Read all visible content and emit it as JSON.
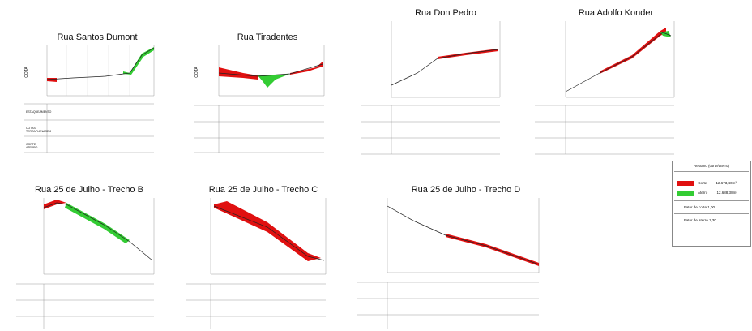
{
  "colors": {
    "cut": "#e01010",
    "fill": "#33cc33",
    "profile": "#222222",
    "grid": "#bdbdbd"
  },
  "labels": {
    "axis": "COTA",
    "row1": "ESTAQUEAMENTO",
    "row2": "COTAS TERRAPLENAGEM",
    "row3": "CORTE ATERRO"
  },
  "panels": [
    {
      "title": "Rua Santos Dumont"
    },
    {
      "title": "Rua Tiradentes"
    },
    {
      "title": "Rua Don Pedro"
    },
    {
      "title": "Rua Adolfo Konder"
    },
    {
      "title": "Rua 25 de Julho - Trecho B"
    },
    {
      "title": "Rua 25 de Julho - Trecho C"
    },
    {
      "title": "Rua 25 de Julho - Trecho D"
    }
  ],
  "legend": {
    "title": "Resumo (corte/aterro)",
    "cut_label": "Corte",
    "cut_value": "12.673,40m³",
    "fill_label": "Aterro",
    "fill_value": "12.688,38m³",
    "line1": "Fator de corte 1,00",
    "line2": "Fator de aterro 1,30"
  }
}
